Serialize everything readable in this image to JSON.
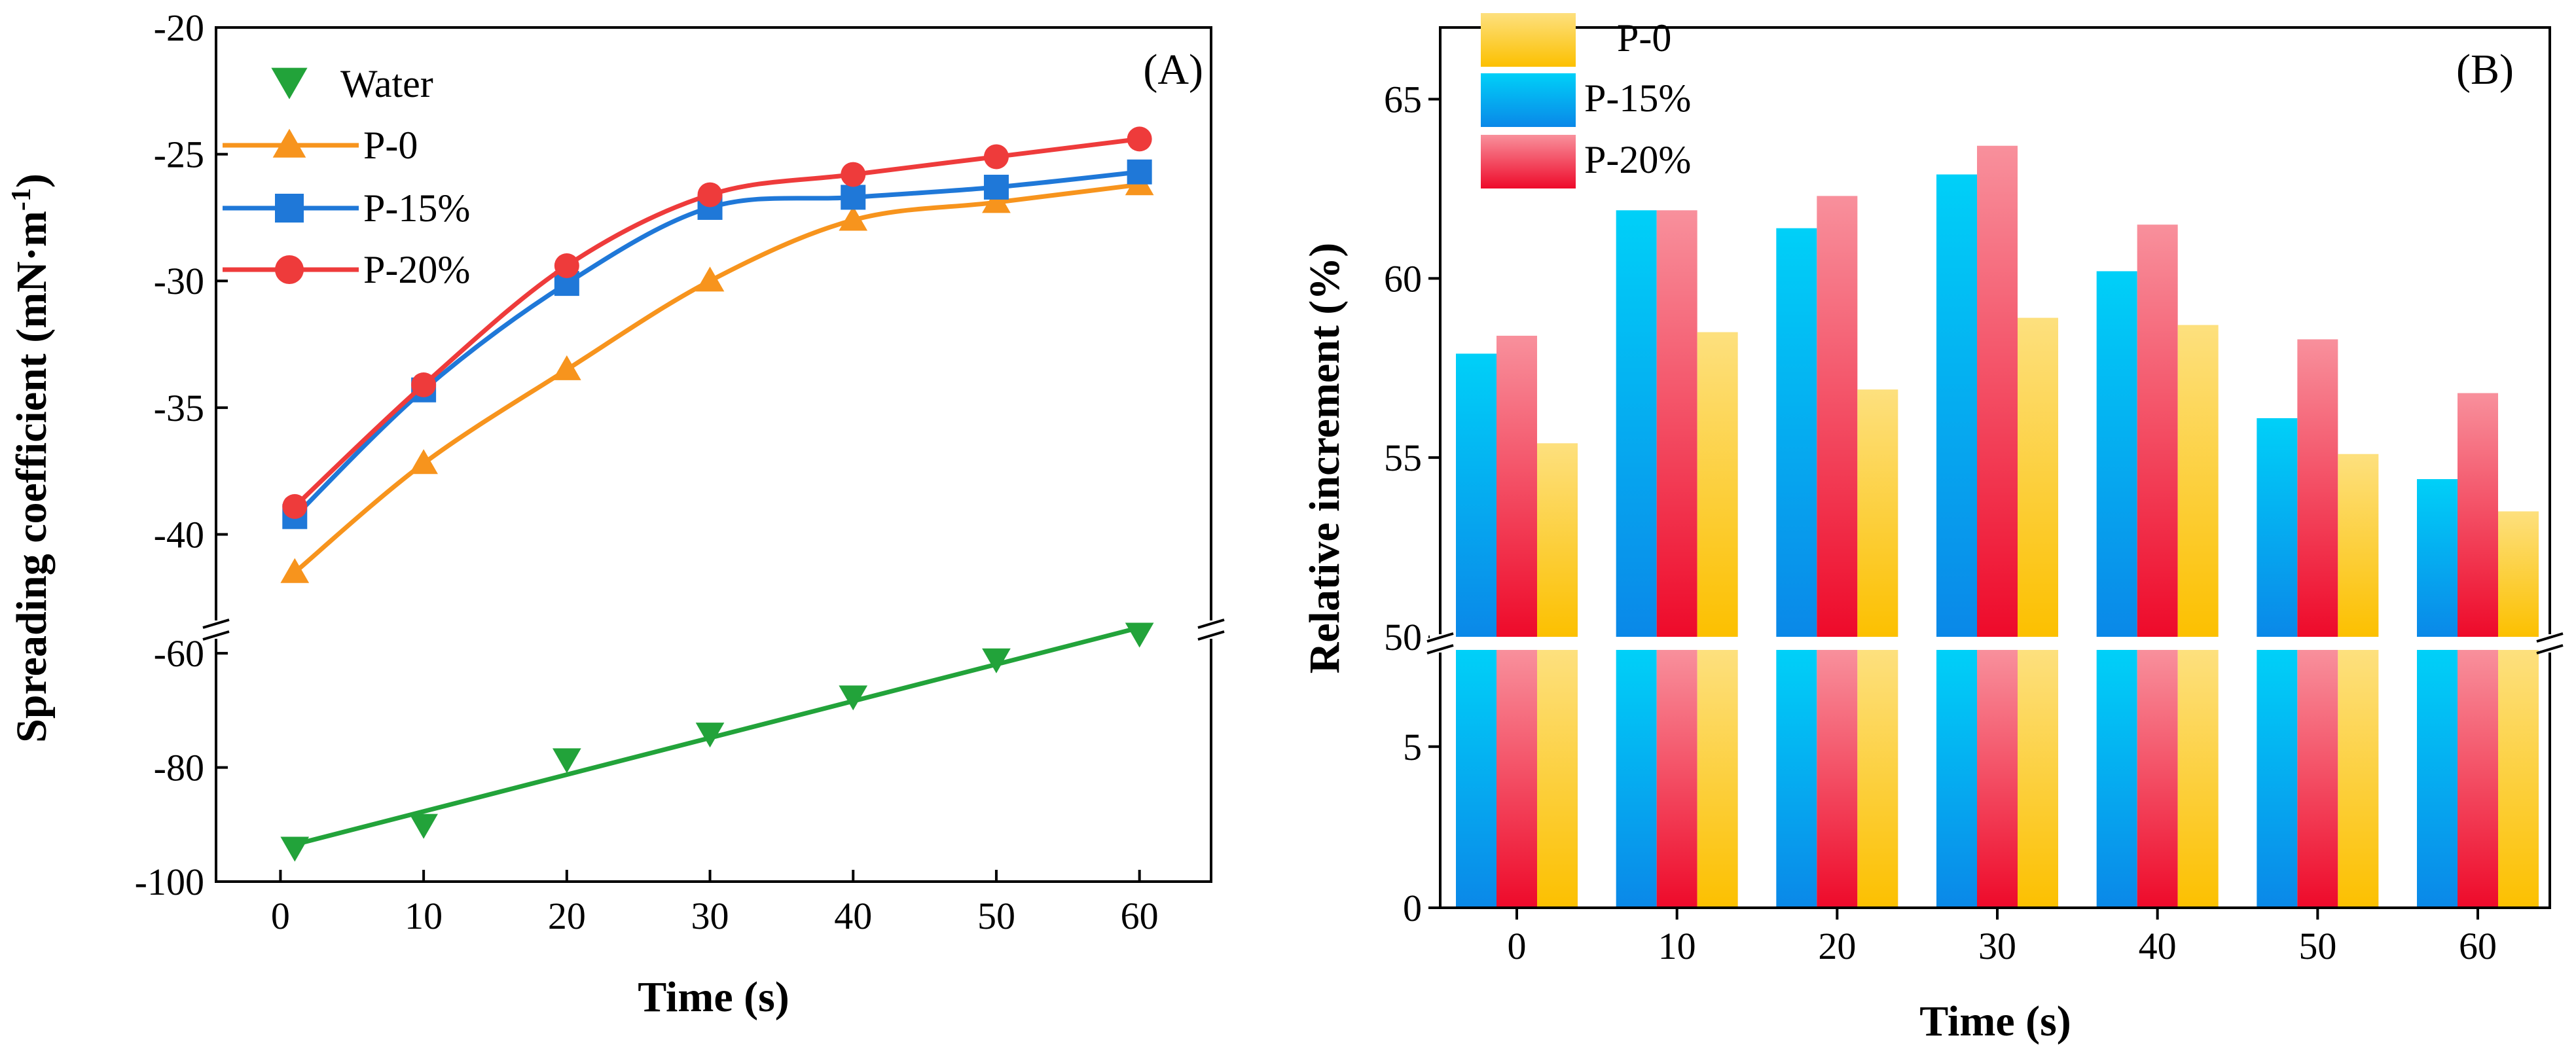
{
  "chart_data": [
    {
      "panel": "A",
      "type": "line",
      "panel_label": "(A)",
      "xlabel": "Time (s)",
      "ylabel": "Spreading coefficient (mN·m",
      "ylabel_superscript": "-1",
      "ylabel_close": ")",
      "x_ticks": [
        0,
        10,
        20,
        30,
        40,
        50,
        60
      ],
      "y_ticks_upper": [
        -20,
        -25,
        -30,
        -35,
        -40
      ],
      "y_ticks_lower": [
        -60,
        -80,
        -100
      ],
      "ylim_upper": [
        -43.5,
        -20
      ],
      "ylim_lower": [
        -100,
        -57
      ],
      "xlim": [
        -4.5,
        65
      ],
      "broken_y_axis": true,
      "series": [
        {
          "name": "Water",
          "marker": "triangle-down",
          "color": "#22a33a",
          "segment": "lower",
          "x": [
            1,
            10,
            20,
            30,
            40,
            50,
            60
          ],
          "y": [
            -94,
            -90,
            -78.5,
            -74,
            -67.5,
            -61,
            -56.5
          ],
          "fit": {
            "x": [
              1,
              60
            ],
            "y": [
              -93.5,
              -55.5
            ]
          }
        },
        {
          "name": "P-0",
          "marker": "triangle-up",
          "color": "#f7941d",
          "segment": "upper",
          "x": [
            1,
            10,
            20,
            30,
            40,
            50,
            60
          ],
          "y": [
            -41.5,
            -37.2,
            -33.5,
            -30,
            -27.6,
            -26.9,
            -26.2
          ]
        },
        {
          "name": "P-15%",
          "marker": "square",
          "color": "#1f78d8",
          "segment": "upper",
          "x": [
            1,
            10,
            20,
            30,
            40,
            50,
            60
          ],
          "y": [
            -39.3,
            -34.3,
            -30.1,
            -27.1,
            -26.7,
            -26.3,
            -25.7
          ]
        },
        {
          "name": "P-20%",
          "marker": "circle",
          "color": "#ee3b3b",
          "segment": "upper",
          "x": [
            1,
            10,
            20,
            30,
            40,
            50,
            60
          ],
          "y": [
            -38.9,
            -34.1,
            -29.4,
            -26.6,
            -25.8,
            -25.1,
            -24.4
          ]
        }
      ]
    },
    {
      "panel": "B",
      "type": "bar",
      "panel_label": "(B)",
      "xlabel": "Time (s)",
      "ylabel": "Relative increment (%)",
      "categories": [
        "0",
        "10",
        "20",
        "30",
        "40",
        "50",
        "60"
      ],
      "y_ticks_upper": [
        50,
        55,
        60,
        65
      ],
      "y_ticks_lower": [
        0,
        5
      ],
      "ylim_upper": [
        50,
        67
      ],
      "ylim_lower": [
        0,
        8
      ],
      "broken_y_axis": true,
      "series": [
        {
          "name": "P-15%",
          "color_top": "#00d0f8",
          "color_bottom": "#0a88e8",
          "values": [
            57.9,
            61.9,
            61.4,
            62.9,
            60.2,
            56.1,
            54.4
          ]
        },
        {
          "name": "P-20%",
          "color_top": "#f8909c",
          "color_bottom": "#ee0a2a",
          "values": [
            58.4,
            61.9,
            62.3,
            63.7,
            61.5,
            58.3,
            56.8
          ]
        },
        {
          "name": "P-0",
          "color_top": "#fde07e",
          "color_bottom": "#fcc000",
          "values": [
            55.4,
            58.5,
            56.9,
            58.9,
            58.7,
            55.1,
            53.5
          ]
        }
      ],
      "legend_order": [
        "P-0",
        "P-15%",
        "P-20%"
      ]
    }
  ]
}
